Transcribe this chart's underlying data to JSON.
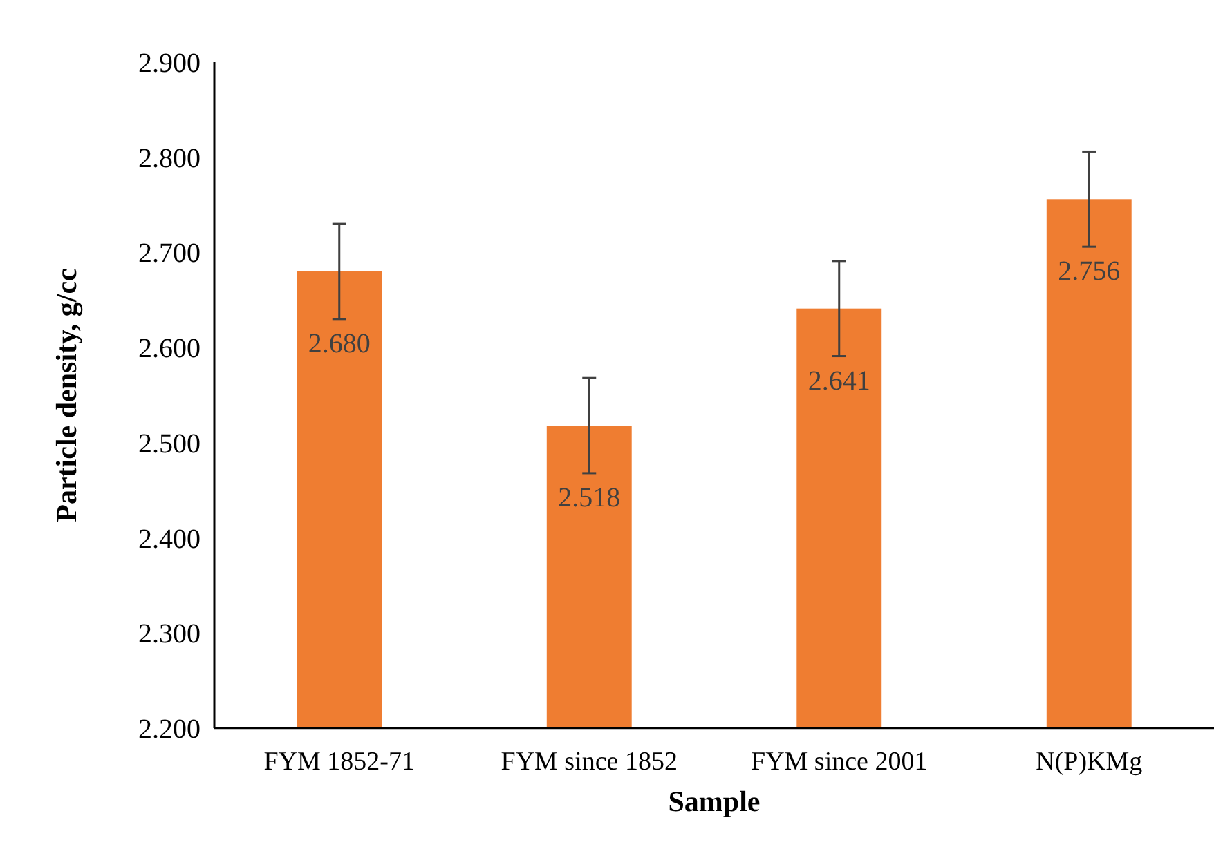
{
  "chart_data": {
    "type": "bar",
    "xlabel": "Sample",
    "ylabel": "Particle density, g/cc",
    "categories": [
      "FYM 1852-71",
      "FYM since 1852",
      "FYM since 2001",
      "N(P)KMg"
    ],
    "values": [
      2.68,
      2.518,
      2.641,
      2.756
    ],
    "value_labels": [
      "2.680",
      "2.518",
      "2.641",
      "2.756"
    ],
    "errors": [
      0.05,
      0.05,
      0.05,
      0.05
    ],
    "color": "#ef7d31",
    "ylim": [
      2.2,
      2.9
    ],
    "yticks": [
      {
        "value": 2.2,
        "label": "2.200"
      },
      {
        "value": 2.3,
        "label": "2.300"
      },
      {
        "value": 2.4,
        "label": "2.400"
      },
      {
        "value": 2.5,
        "label": "2.500"
      },
      {
        "value": 2.6,
        "label": "2.600"
      },
      {
        "value": 2.7,
        "label": "2.700"
      },
      {
        "value": 2.8,
        "label": "2.800"
      },
      {
        "value": 2.9,
        "label": "2.900"
      }
    ],
    "grid": false
  }
}
